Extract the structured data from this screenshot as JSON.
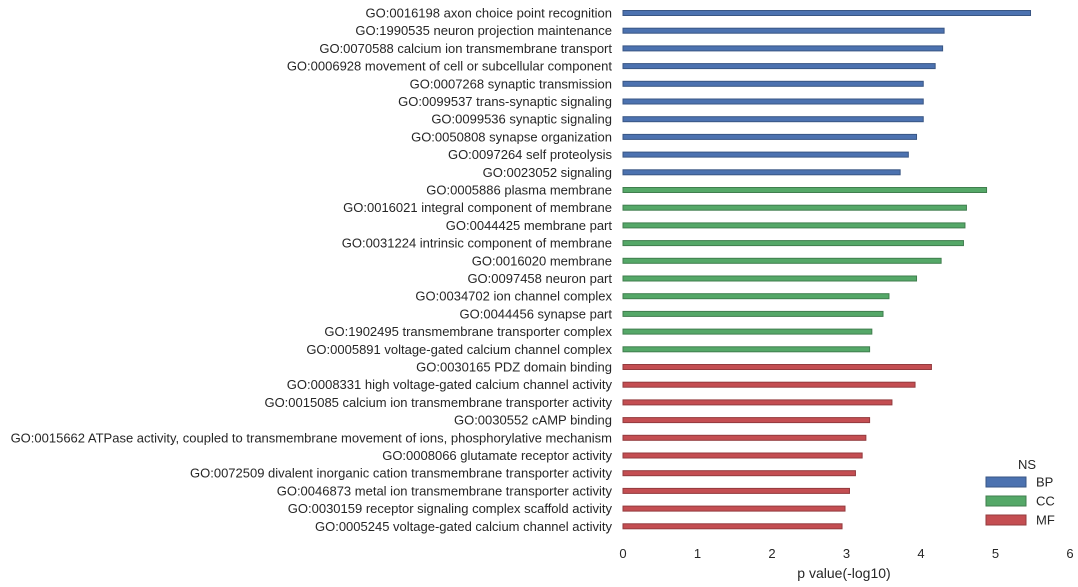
{
  "chart_data": {
    "type": "bar",
    "orientation": "horizontal",
    "title": "",
    "xlabel": "p value(-log10)",
    "ylabel": "",
    "xlim": [
      0,
      6
    ],
    "xticks": [
      "0",
      "1",
      "2",
      "3",
      "4",
      "5",
      "6"
    ],
    "grid": false,
    "legend": {
      "title": "NS",
      "placement": "bottom-right",
      "entries": [
        {
          "name": "BP",
          "color": "#4c72b0"
        },
        {
          "name": "CC",
          "color": "#55a868"
        },
        {
          "name": "MF",
          "color": "#c44e52"
        }
      ]
    },
    "bars": [
      {
        "label": "GO:0016198 axon choice point recognition",
        "value": 5.47,
        "ns": "BP"
      },
      {
        "label": "GO:1990535 neuron projection maintenance",
        "value": 4.31,
        "ns": "BP"
      },
      {
        "label": "GO:0070588 calcium ion transmembrane transport",
        "value": 4.29,
        "ns": "BP"
      },
      {
        "label": "GO:0006928 movement of cell or subcellular component",
        "value": 4.19,
        "ns": "BP"
      },
      {
        "label": "GO:0007268 synaptic transmission",
        "value": 4.03,
        "ns": "BP"
      },
      {
        "label": "GO:0099537 trans-synaptic signaling",
        "value": 4.03,
        "ns": "BP"
      },
      {
        "label": "GO:0099536 synaptic signaling",
        "value": 4.03,
        "ns": "BP"
      },
      {
        "label": "GO:0050808 synapse organization",
        "value": 3.94,
        "ns": "BP"
      },
      {
        "label": "GO:0097264 self proteolysis",
        "value": 3.83,
        "ns": "BP"
      },
      {
        "label": "GO:0023052 signaling",
        "value": 3.72,
        "ns": "BP"
      },
      {
        "label": "GO:0005886 plasma membrane",
        "value": 4.88,
        "ns": "CC"
      },
      {
        "label": "GO:0016021 integral component of membrane",
        "value": 4.61,
        "ns": "CC"
      },
      {
        "label": "GO:0044425 membrane part",
        "value": 4.59,
        "ns": "CC"
      },
      {
        "label": "GO:0031224 intrinsic component of membrane",
        "value": 4.57,
        "ns": "CC"
      },
      {
        "label": "GO:0016020 membrane",
        "value": 4.27,
        "ns": "CC"
      },
      {
        "label": "GO:0097458 neuron part",
        "value": 3.94,
        "ns": "CC"
      },
      {
        "label": "GO:0034702 ion channel complex",
        "value": 3.57,
        "ns": "CC"
      },
      {
        "label": "GO:0044456 synapse part",
        "value": 3.49,
        "ns": "CC"
      },
      {
        "label": "GO:1902495 transmembrane transporter complex",
        "value": 3.34,
        "ns": "CC"
      },
      {
        "label": "GO:0005891 voltage-gated calcium channel complex",
        "value": 3.31,
        "ns": "CC"
      },
      {
        "label": "GO:0030165 PDZ domain binding",
        "value": 4.14,
        "ns": "MF"
      },
      {
        "label": "GO:0008331 high voltage-gated calcium channel activity",
        "value": 3.92,
        "ns": "MF"
      },
      {
        "label": "GO:0015085 calcium ion transmembrane transporter activity",
        "value": 3.61,
        "ns": "MF"
      },
      {
        "label": "GO:0030552 cAMP binding",
        "value": 3.31,
        "ns": "MF"
      },
      {
        "label": "GO:0015662 ATPase activity, coupled to transmembrane movement of ions, phosphorylative mechanism",
        "value": 3.26,
        "ns": "MF"
      },
      {
        "label": "GO:0008066 glutamate receptor activity",
        "value": 3.21,
        "ns": "MF"
      },
      {
        "label": "GO:0072509 divalent inorganic cation transmembrane transporter activity",
        "value": 3.12,
        "ns": "MF"
      },
      {
        "label": "GO:0046873 metal ion transmembrane transporter activity",
        "value": 3.04,
        "ns": "MF"
      },
      {
        "label": "GO:0030159 receptor signaling complex scaffold activity",
        "value": 2.98,
        "ns": "MF"
      },
      {
        "label": "GO:0005245 voltage-gated calcium channel activity",
        "value": 2.94,
        "ns": "MF"
      }
    ]
  }
}
